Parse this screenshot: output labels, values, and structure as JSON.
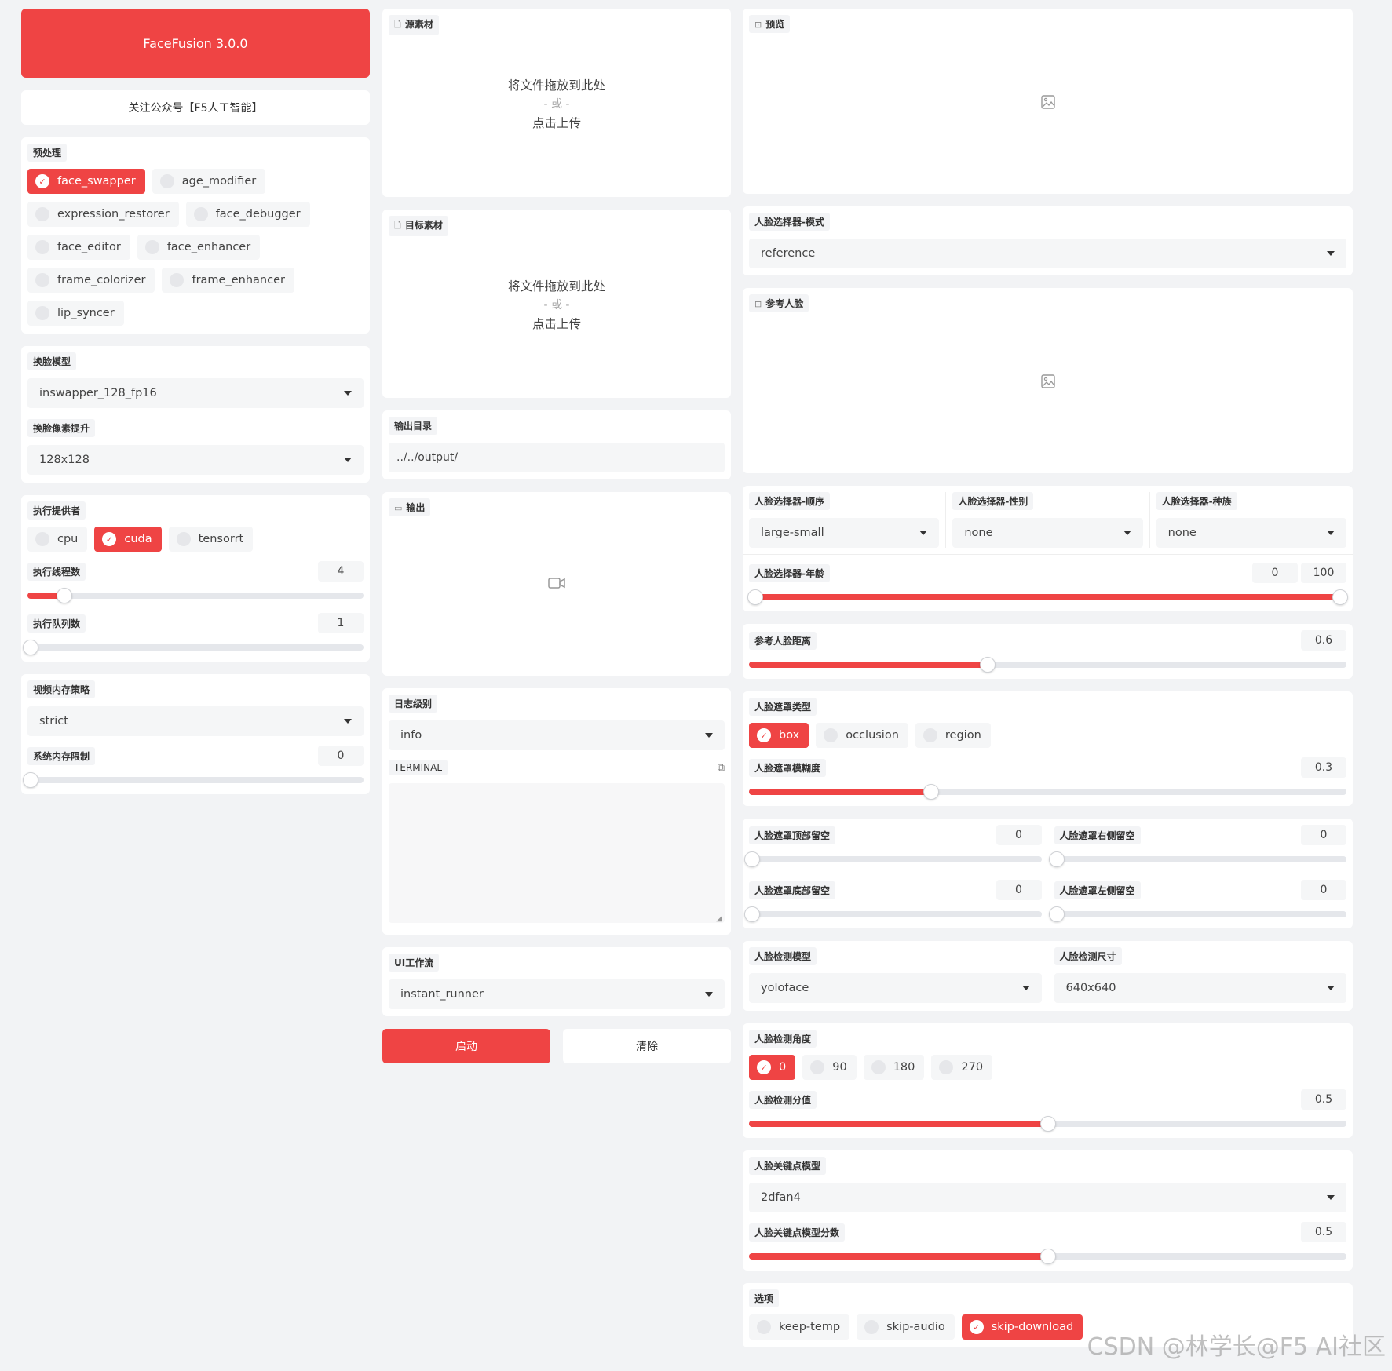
{
  "app": {
    "title": "FaceFusion 3.0.0",
    "notice": "关注公众号【F5人工智能】"
  },
  "preprocess": {
    "label": "预处理",
    "items": [
      {
        "label": "face_swapper",
        "checked": true
      },
      {
        "label": "age_modifier",
        "checked": false
      },
      {
        "label": "expression_restorer",
        "checked": false
      },
      {
        "label": "face_debugger",
        "checked": false
      },
      {
        "label": "face_editor",
        "checked": false
      },
      {
        "label": "face_enhancer",
        "checked": false
      },
      {
        "label": "frame_colorizer",
        "checked": false
      },
      {
        "label": "frame_enhancer",
        "checked": false
      },
      {
        "label": "lip_syncer",
        "checked": false
      }
    ]
  },
  "swap_model": {
    "label": "换脸模型",
    "value": "inswapper_128_fp16"
  },
  "swap_pixel_boost": {
    "label": "换脸像素提升",
    "value": "128x128"
  },
  "execution": {
    "providers_label": "执行提供者",
    "providers": [
      {
        "label": "cpu",
        "checked": false
      },
      {
        "label": "cuda",
        "checked": true
      },
      {
        "label": "tensorrt",
        "checked": false
      }
    ],
    "threads_label": "执行线程数",
    "threads": "4",
    "threads_fraction": 0.11,
    "queue_label": "执行队列数",
    "queue": "1",
    "queue_fraction": 0.0
  },
  "memory": {
    "strategy_label": "视频内存策略",
    "strategy": "strict",
    "limit_label": "系统内存限制",
    "limit": "0",
    "limit_fraction": 0.0
  },
  "source": {
    "label": "源素材",
    "drop": "将文件拖放到此处",
    "or": "- 或 -",
    "click": "点击上传"
  },
  "target": {
    "label": "目标素材",
    "drop": "将文件拖放到此处",
    "or": "- 或 -",
    "click": "点击上传"
  },
  "output_dir": {
    "label": "输出目录",
    "value": "../../output/"
  },
  "output": {
    "label": "输出"
  },
  "log": {
    "label": "日志级别",
    "value": "info"
  },
  "terminal": {
    "label": "TERMINAL"
  },
  "ui_workflow": {
    "label": "UI工作流",
    "value": "instant_runner"
  },
  "actions": {
    "start": "启动",
    "clear": "清除"
  },
  "preview": {
    "label": "预览"
  },
  "face_selector_mode": {
    "label": "人脸选择器-模式",
    "value": "reference"
  },
  "reference_face": {
    "label": "参考人脸"
  },
  "face_selector": {
    "order_label": "人脸选择器-顺序",
    "order": "large-small",
    "gender_label": "人脸选择器-性别",
    "gender": "none",
    "race_label": "人脸选择器-种族",
    "race": "none",
    "age_label": "人脸选择器-年龄",
    "age_min": "0",
    "age_max": "100"
  },
  "reference_distance": {
    "label": "参考人脸距离",
    "value": "0.6",
    "fraction": 0.4
  },
  "face_mask": {
    "types_label": "人脸遮罩类型",
    "types": [
      {
        "label": "box",
        "checked": true
      },
      {
        "label": "occlusion",
        "checked": false
      },
      {
        "label": "region",
        "checked": false
      }
    ],
    "blur_label": "人脸遮罩模糊度",
    "blur": "0.3",
    "blur_fraction": 0.305,
    "pad_top_label": "人脸遮罩顶部留空",
    "pad_top": "0",
    "pad_right_label": "人脸遮罩右侧留空",
    "pad_right": "0",
    "pad_bottom_label": "人脸遮罩底部留空",
    "pad_bottom": "0",
    "pad_left_label": "人脸遮罩左侧留空",
    "pad_left": "0"
  },
  "face_detector": {
    "model_label": "人脸检测模型",
    "model": "yoloface",
    "size_label": "人脸检测尺寸",
    "size": "640x640",
    "angles_label": "人脸检测角度",
    "angles": [
      {
        "label": "0",
        "checked": true
      },
      {
        "label": "90",
        "checked": false
      },
      {
        "label": "180",
        "checked": false
      },
      {
        "label": "270",
        "checked": false
      }
    ],
    "score_label": "人脸检测分值",
    "score": "0.5",
    "score_fraction": 0.5
  },
  "landmarker": {
    "model_label": "人脸关键点模型",
    "model": "2dfan4",
    "score_label": "人脸关键点模型分数",
    "score": "0.5",
    "score_fraction": 0.5
  },
  "options": {
    "label": "选项",
    "items": [
      {
        "label": "keep-temp",
        "checked": false
      },
      {
        "label": "skip-audio",
        "checked": false
      },
      {
        "label": "skip-download",
        "checked": true
      }
    ]
  },
  "watermark": "CSDN @林学长@F5 AI社区",
  "colors": {
    "accent": "#ef4444",
    "panel": "#ffffff",
    "background": "#f2f3f5"
  }
}
